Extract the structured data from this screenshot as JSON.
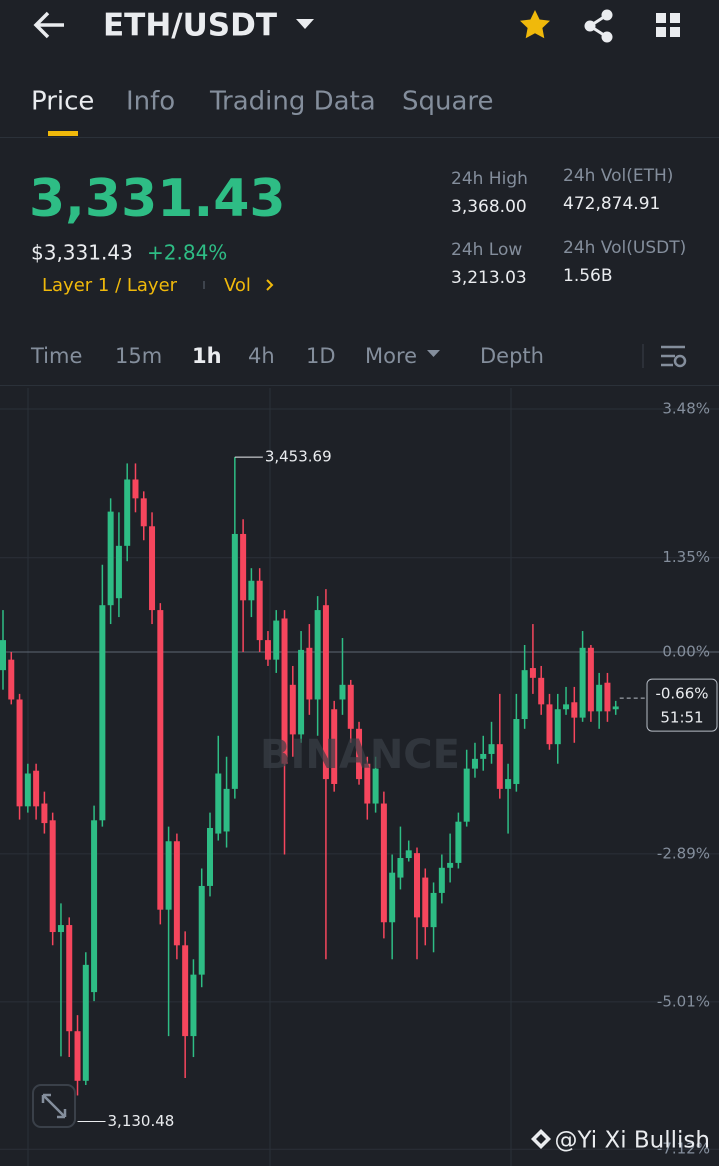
{
  "header": {
    "pair": "ETH/USDT"
  },
  "tabs": [
    "Price",
    "Info",
    "Trading Data",
    "Square"
  ],
  "ticker": {
    "price": "3,331.43",
    "price_usd": "$3,331.43",
    "change": "+2.84%",
    "tags": [
      "Layer 1 / Layer",
      "Vol"
    ]
  },
  "stats": [
    {
      "label": "24h High",
      "value": "3,368.00"
    },
    {
      "label": "24h Vol(ETH)",
      "value": "472,874.91"
    },
    {
      "label": "24h Low",
      "value": "3,213.03"
    },
    {
      "label": "24h Vol(USDT)",
      "value": "1.56B"
    }
  ],
  "timeframes": [
    "Time",
    "15m",
    "1h",
    "4h",
    "1D",
    "More",
    "Depth"
  ],
  "chart_data": {
    "type": "candlestick",
    "up_color": "#2ebd85",
    "down_color": "#f6465d",
    "grid": true,
    "ylim": [
      -7.36,
      3.78
    ],
    "yticks": [
      {
        "value": 3.48,
        "label": "3.48%"
      },
      {
        "value": 1.35,
        "label": "1.35%"
      },
      {
        "value": 0,
        "label": "0.00%"
      },
      {
        "value": -2.89,
        "label": "-2.89%"
      },
      {
        "value": -5.01,
        "label": "-5.01%"
      },
      {
        "value": -7.12,
        "label": "-7.12%"
      }
    ],
    "open": [
      -0.26,
      -0.11,
      -0.68,
      -2.21,
      -1.7,
      -2.17,
      -2.41,
      -4.01,
      -3.91,
      -5.43,
      -6.14,
      -4.87,
      -2.41,
      0.67,
      0.77,
      1.52,
      2.47,
      2.2,
      1.8,
      0.6,
      -3.69,
      -2.71,
      -4.2,
      -5.5,
      -4.62,
      -3.35,
      -2.6,
      -2.57,
      -1.96,
      1.69,
      0.74,
      1.02,
      0.17,
      -0.11,
      0.48,
      -0.47,
      -1.18,
      0.06,
      -0.68,
      0.67,
      -0.82,
      -0.68,
      -0.47,
      -1.1,
      -1.6,
      -2.17,
      -2.17,
      -3.87,
      -3.23,
      -2.95,
      -2.88,
      -3.23,
      -3.94,
      -3.45,
      -3.09,
      -3.02,
      -2.43,
      -1.67,
      -1.53,
      -1.46,
      -1.32,
      -1.96,
      -1.89,
      -0.96,
      -0.23,
      -0.37,
      -0.75,
      -1.32,
      -0.82,
      -0.72,
      -0.94,
      0.06,
      -0.85,
      -0.44,
      -0.82
    ],
    "high": [
      0.6,
      0.0,
      -0.6,
      -1.6,
      -1.6,
      -2.0,
      -2.3,
      -3.6,
      -3.8,
      -5.2,
      -4.3,
      -2.2,
      1.25,
      2.2,
      2.0,
      2.7,
      2.7,
      2.3,
      2.0,
      0.7,
      -2.5,
      -2.6,
      -4.0,
      -4.4,
      -3.1,
      -2.3,
      -1.2,
      -1.5,
      2.79,
      1.9,
      1.2,
      1.2,
      0.3,
      0.6,
      0.6,
      -0.2,
      0.3,
      0.4,
      0.8,
      0.9,
      -0.7,
      0.2,
      -0.4,
      -1.0,
      -1.5,
      -1.5,
      -2.0,
      -2.9,
      -2.5,
      -2.7,
      -2.8,
      -3.1,
      -3.3,
      -2.9,
      -2.6,
      -2.3,
      -1.4,
      -1.3,
      -1.2,
      -1.0,
      -0.6,
      -1.6,
      -0.6,
      0.1,
      0.4,
      -0.2,
      -0.6,
      -0.6,
      -0.5,
      -0.5,
      0.3,
      0.1,
      -0.3,
      -0.3,
      -0.7
    ],
    "low": [
      -0.54,
      -0.75,
      -2.4,
      -2.3,
      -2.4,
      -2.6,
      -4.2,
      -5.79,
      -5.8,
      -6.35,
      -6.2,
      -5.0,
      -2.5,
      0.4,
      0.5,
      1.3,
      2.0,
      1.6,
      0.4,
      -3.9,
      -5.5,
      -4.4,
      -6.1,
      -5.8,
      -4.8,
      -3.5,
      -2.7,
      -2.8,
      -2.1,
      0.0,
      0.5,
      0.0,
      -0.2,
      -0.3,
      -2.9,
      -1.5,
      -1.3,
      -0.9,
      -1.2,
      -4.4,
      -2.0,
      -0.9,
      -1.3,
      -1.9,
      -2.4,
      -2.3,
      -4.1,
      -4.4,
      -3.4,
      -3.0,
      -4.4,
      -4.2,
      -4.3,
      -3.6,
      -3.3,
      -3.1,
      -2.5,
      -1.8,
      -1.7,
      -1.6,
      -2.1,
      -2.6,
      -2.0,
      -1.1,
      -0.6,
      -0.9,
      -1.4,
      -1.6,
      -0.9,
      -1.3,
      -1.0,
      -1.0,
      -1.1,
      -1.0,
      -0.9
    ],
    "close": [
      0.17,
      -0.68,
      -2.21,
      -1.74,
      -2.21,
      -2.45,
      -4.01,
      -3.91,
      -5.43,
      -6.14,
      -4.48,
      -2.41,
      0.67,
      2.01,
      1.52,
      2.47,
      2.2,
      1.8,
      0.6,
      -3.69,
      -2.71,
      -4.2,
      -5.5,
      -4.62,
      -3.35,
      -2.52,
      -1.74,
      -1.96,
      1.69,
      0.74,
      1.02,
      0.17,
      -0.11,
      0.45,
      -1.6,
      -1.18,
      0.03,
      -0.68,
      0.6,
      -1.82,
      -1.89,
      -0.47,
      -1.1,
      -1.82,
      -2.17,
      -1.67,
      -3.87,
      -3.16,
      -2.95,
      -2.84,
      -3.8,
      -3.94,
      -3.45,
      -3.09,
      -3.02,
      -2.43,
      -1.67,
      -1.53,
      -1.46,
      -1.32,
      -1.96,
      -1.82,
      -0.96,
      -0.26,
      -0.37,
      -0.75,
      -1.32,
      -0.82,
      -0.75,
      -0.94,
      0.06,
      -0.85,
      -0.47,
      -0.85,
      -0.78
    ],
    "annotations": [
      "3,453.69",
      "3,130.48"
    ],
    "current": {
      "value": -0.66,
      "label": "-0.66%",
      "countdown": "51:51"
    }
  },
  "watermark": "BINANCE",
  "credit": "@Yi Xi Bullish"
}
